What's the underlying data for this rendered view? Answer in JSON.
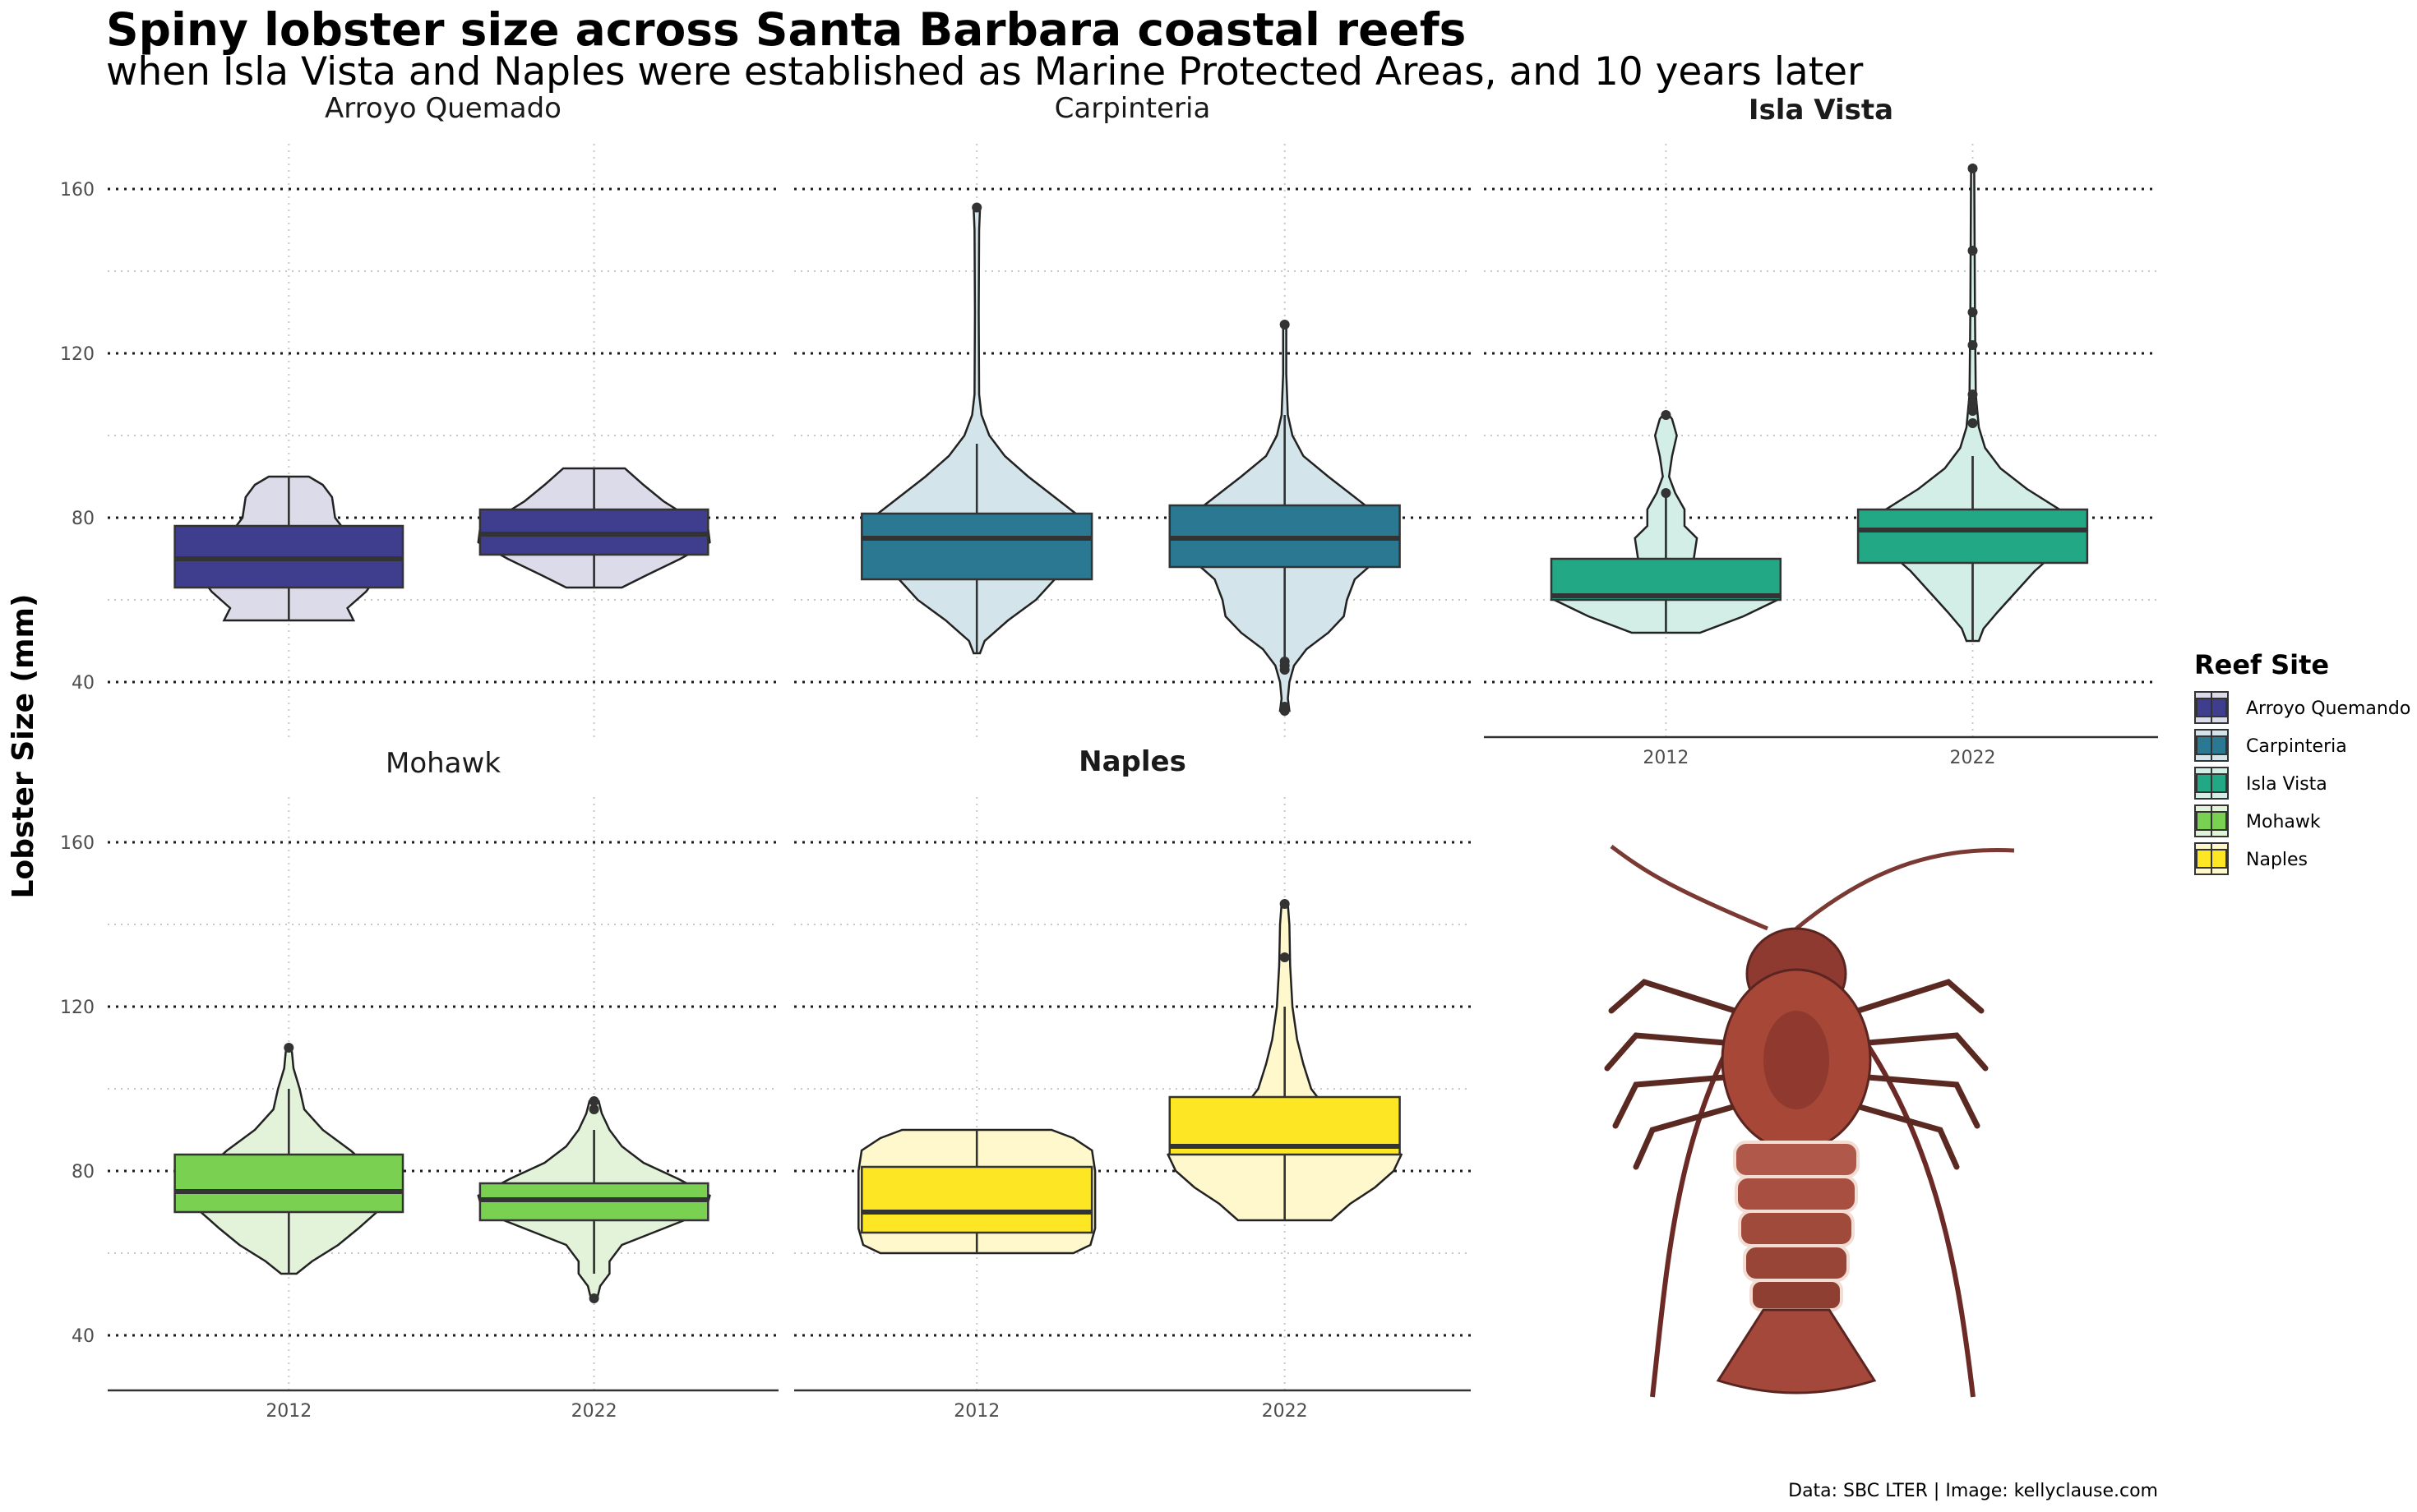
{
  "title": "Spiny lobster size across Santa Barbara coastal reefs",
  "subtitle": "when Isla Vista and Naples were established as Marine Protected Areas, and 10 years later",
  "caption": "Data: SBC LTER | Image: kellyclause.com",
  "y_axis_title": "Lobster Size (mm)",
  "legend_title": "Reef Site",
  "image_icon": "spiny-lobster-illustration",
  "chart_data": {
    "type": "violin-box",
    "facet_by": "site",
    "x_categories": [
      "2012",
      "2022"
    ],
    "y_ticks": [
      40,
      80,
      120,
      160
    ],
    "ylim": [
      26,
      171
    ],
    "grid": "dotted",
    "legend_position": "right",
    "sites": [
      {
        "name": "Arroyo Quemando",
        "label": "Arroyo Quemado",
        "mpa": false,
        "color": "#3f3d8e",
        "light": "#dcdbea",
        "years": [
          {
            "year": "2012",
            "q1": 63,
            "median": 70,
            "q3": 78,
            "wlo": 55,
            "whi": 90,
            "outliers": [],
            "violin": [
              [
                55,
                0.42
              ],
              [
                58,
                0.38
              ],
              [
                62,
                0.5
              ],
              [
                66,
                0.58
              ],
              [
                70,
                0.52
              ],
              [
                75,
                0.4
              ],
              [
                80,
                0.3
              ],
              [
                85,
                0.28
              ],
              [
                88,
                0.22
              ],
              [
                90,
                0.13
              ]
            ]
          },
          {
            "year": "2022",
            "q1": 71,
            "median": 76,
            "q3": 82,
            "wlo": 63,
            "whi": 92,
            "outliers": [],
            "violin": [
              [
                63,
                0.18
              ],
              [
                66,
                0.34
              ],
              [
                70,
                0.56
              ],
              [
                74,
                0.75
              ],
              [
                77,
                0.74
              ],
              [
                80,
                0.62
              ],
              [
                84,
                0.45
              ],
              [
                88,
                0.32
              ],
              [
                92,
                0.2
              ]
            ]
          }
        ]
      },
      {
        "name": "Carpinteria",
        "label": "Carpinteria",
        "mpa": false,
        "color": "#2a7891",
        "light": "#d3e4ea",
        "years": [
          {
            "year": "2012",
            "q1": 65,
            "median": 75,
            "q3": 81,
            "wlo": 47,
            "whi": 98,
            "outliers": [
              155.5
            ],
            "violin": [
              [
                47,
                0.02
              ],
              [
                50,
                0.05
              ],
              [
                55,
                0.2
              ],
              [
                60,
                0.38
              ],
              [
                65,
                0.5
              ],
              [
                70,
                0.63
              ],
              [
                75,
                0.71
              ],
              [
                80,
                0.67
              ],
              [
                85,
                0.5
              ],
              [
                90,
                0.33
              ],
              [
                95,
                0.18
              ],
              [
                100,
                0.08
              ],
              [
                105,
                0.03
              ],
              [
                110,
                0.015
              ],
              [
                130,
                0.012
              ],
              [
                150,
                0.015
              ],
              [
                155,
                0.02
              ],
              [
                156,
                0.005
              ]
            ]
          },
          {
            "year": "2022",
            "q1": 68,
            "median": 75,
            "q3": 83,
            "wlo": 46,
            "whi": 105,
            "outliers": [
              127,
              45,
              44,
              43,
              33,
              34
            ],
            "violin": [
              [
                33,
                0.03
              ],
              [
                36,
                0.02
              ],
              [
                40,
                0.03
              ],
              [
                44,
                0.06
              ],
              [
                48,
                0.14
              ],
              [
                52,
                0.28
              ],
              [
                56,
                0.38
              ],
              [
                60,
                0.4
              ],
              [
                65,
                0.45
              ],
              [
                70,
                0.6
              ],
              [
                75,
                0.72
              ],
              [
                80,
                0.62
              ],
              [
                85,
                0.45
              ],
              [
                90,
                0.28
              ],
              [
                95,
                0.12
              ],
              [
                100,
                0.05
              ],
              [
                105,
                0.02
              ],
              [
                115,
                0.01
              ],
              [
                127,
                0.01
              ]
            ]
          }
        ]
      },
      {
        "name": "Isla Vista",
        "label": "Isla Vista",
        "mpa": true,
        "color": "#22a884",
        "light": "#d3eee6",
        "years": [
          {
            "year": "2012",
            "q1": 60,
            "median": 61,
            "q3": 70,
            "wlo": 52,
            "whi": 85,
            "outliers": [
              105,
              86
            ],
            "violin": [
              [
                52,
                0.22
              ],
              [
                56,
                0.5
              ],
              [
                60,
                0.72
              ],
              [
                62,
                0.68
              ],
              [
                65,
                0.35
              ],
              [
                70,
                0.18
              ],
              [
                75,
                0.2
              ],
              [
                78,
                0.12
              ],
              [
                82,
                0.12
              ],
              [
                86,
                0.06
              ],
              [
                90,
                0.02
              ],
              [
                95,
                0.04
              ],
              [
                100,
                0.07
              ],
              [
                104,
                0.04
              ],
              [
                105,
                0.02
              ]
            ]
          },
          {
            "year": "2022",
            "q1": 69,
            "median": 77,
            "q3": 82,
            "wlo": 50,
            "whi": 95,
            "outliers": [
              165,
              145,
              130,
              122,
              110,
              108,
              106,
              103
            ],
            "violin": [
              [
                50,
                0.04
              ],
              [
                53,
                0.07
              ],
              [
                57,
                0.16
              ],
              [
                62,
                0.28
              ],
              [
                67,
                0.4
              ],
              [
                72,
                0.55
              ],
              [
                77,
                0.68
              ],
              [
                82,
                0.56
              ],
              [
                87,
                0.35
              ],
              [
                92,
                0.18
              ],
              [
                97,
                0.08
              ],
              [
                102,
                0.04
              ],
              [
                110,
                0.02
              ],
              [
                130,
                0.015
              ],
              [
                150,
                0.012
              ],
              [
                165,
                0.01
              ]
            ]
          }
        ]
      },
      {
        "name": "Mohawk",
        "label": "Mohawk",
        "mpa": false,
        "color": "#7ad151",
        "light": "#e2f3d9",
        "years": [
          {
            "year": "2012",
            "q1": 70,
            "median": 75,
            "q3": 84,
            "wlo": 55,
            "whi": 100,
            "outliers": [
              110
            ],
            "violin": [
              [
                55,
                0.05
              ],
              [
                58,
                0.15
              ],
              [
                62,
                0.32
              ],
              [
                66,
                0.45
              ],
              [
                70,
                0.57
              ],
              [
                75,
                0.61
              ],
              [
                80,
                0.55
              ],
              [
                85,
                0.4
              ],
              [
                90,
                0.22
              ],
              [
                95,
                0.1
              ],
              [
                100,
                0.07
              ],
              [
                105,
                0.03
              ],
              [
                109,
                0.02
              ],
              [
                110,
                0.01
              ]
            ]
          },
          {
            "year": "2022",
            "q1": 68,
            "median": 73,
            "q3": 77,
            "wlo": 55,
            "whi": 90,
            "outliers": [
              97,
              95,
              49
            ],
            "violin": [
              [
                49,
                0.02
              ],
              [
                52,
                0.04
              ],
              [
                55,
                0.1
              ],
              [
                58,
                0.1
              ],
              [
                62,
                0.18
              ],
              [
                66,
                0.45
              ],
              [
                70,
                0.72
              ],
              [
                74,
                0.75
              ],
              [
                78,
                0.55
              ],
              [
                82,
                0.32
              ],
              [
                86,
                0.18
              ],
              [
                90,
                0.1
              ],
              [
                94,
                0.05
              ],
              [
                97,
                0.03
              ]
            ]
          }
        ]
      },
      {
        "name": "Naples",
        "label": "Naples",
        "mpa": true,
        "color": "#fde725",
        "light": "#fef8cc",
        "years": [
          {
            "year": "2012",
            "q1": 65,
            "median": 70,
            "q3": 81,
            "wlo": 60,
            "whi": 90,
            "outliers": [],
            "violin": [
              [
                60,
                0.62
              ],
              [
                62,
                0.73
              ],
              [
                66,
                0.76
              ],
              [
                70,
                0.76
              ],
              [
                75,
                0.76
              ],
              [
                80,
                0.76
              ],
              [
                85,
                0.74
              ],
              [
                88,
                0.62
              ],
              [
                90,
                0.48
              ]
            ]
          },
          {
            "year": "2022",
            "q1": 84,
            "median": 86,
            "q3": 98,
            "wlo": 68,
            "whi": 120,
            "outliers": [
              145,
              132
            ],
            "violin": [
              [
                68,
                0.3
              ],
              [
                72,
                0.42
              ],
              [
                76,
                0.58
              ],
              [
                80,
                0.7
              ],
              [
                84,
                0.75
              ],
              [
                88,
                0.55
              ],
              [
                92,
                0.36
              ],
              [
                96,
                0.25
              ],
              [
                100,
                0.17
              ],
              [
                106,
                0.12
              ],
              [
                112,
                0.08
              ],
              [
                120,
                0.05
              ],
              [
                130,
                0.035
              ],
              [
                140,
                0.03
              ],
              [
                145,
                0.02
              ]
            ]
          }
        ]
      }
    ]
  }
}
